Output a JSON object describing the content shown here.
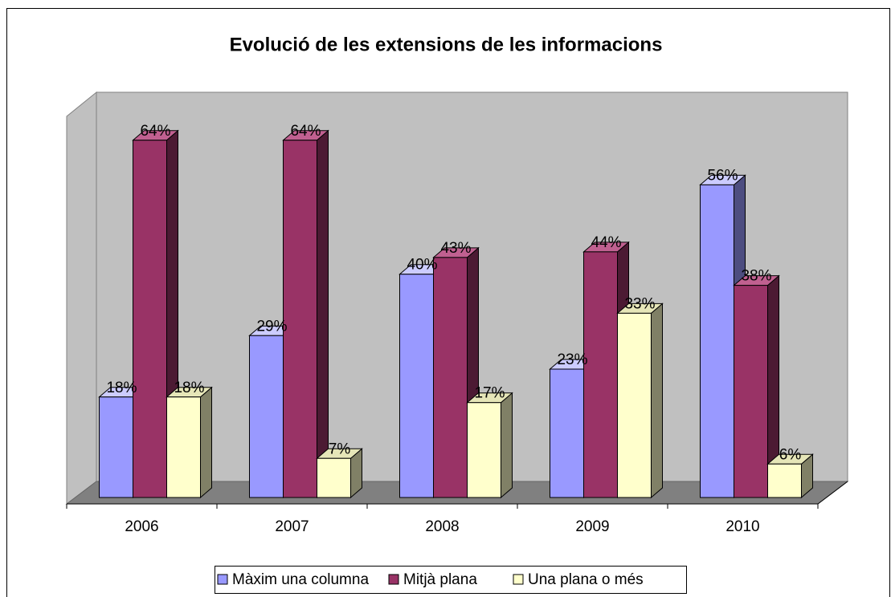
{
  "chart_data": {
    "type": "bar3d",
    "title": "Evolució de les extensions de les informacions",
    "categories": [
      "2006",
      "2007",
      "2008",
      "2009",
      "2010"
    ],
    "series": [
      {
        "name": "Màxim una columna",
        "color": "#9999ff",
        "side": "#4d4d80",
        "top": "#ccccff",
        "values": [
          18,
          29,
          40,
          23,
          56
        ],
        "value_labels": [
          "18%",
          "29%",
          "40%",
          "23%",
          "56%"
        ]
      },
      {
        "name": "Mitjà plana",
        "color": "#993366",
        "side": "#4c1a33",
        "top": "#c06090",
        "values": [
          64,
          64,
          43,
          44,
          38
        ],
        "value_labels": [
          "64%",
          "64%",
          "43%",
          "44%",
          "38%"
        ]
      },
      {
        "name": "Una plana o més",
        "color": "#ffffcc",
        "side": "#808066",
        "top": "#e6e6b8",
        "values": [
          18,
          7,
          17,
          33,
          6
        ],
        "value_labels": [
          "18%",
          "7%",
          "17%",
          "33%",
          "6%"
        ]
      }
    ],
    "ylim": [
      0,
      70
    ],
    "legend": "bottom"
  }
}
